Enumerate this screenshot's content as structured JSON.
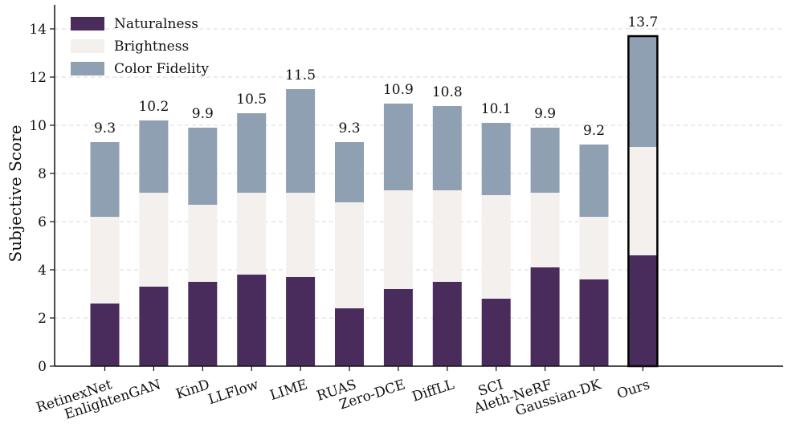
{
  "chart_data": {
    "type": "bar",
    "stacked": true,
    "title": "",
    "xlabel": "",
    "ylabel": "Subjective Score",
    "ylim": [
      0,
      15
    ],
    "yticks": [
      0,
      2,
      4,
      6,
      8,
      10,
      12,
      14
    ],
    "grid": "horizontal dashed",
    "legend_position": "top-left",
    "categories": [
      "RetinexNet",
      "EnlightenGAN",
      "KinD",
      "LLFlow",
      "LIME",
      "RUAS",
      "Zero-DCE",
      "DiffLL",
      "SCI",
      "Aleth-NeRF",
      "Gaussian-DK",
      "Ours"
    ],
    "series": [
      {
        "name": "Naturalness",
        "color": "#4a2c5c",
        "values": [
          2.6,
          3.3,
          3.5,
          3.8,
          3.7,
          2.4,
          3.2,
          3.5,
          2.8,
          4.1,
          3.6,
          4.6
        ]
      },
      {
        "name": "Brightness",
        "color": "#f3f0ee",
        "values": [
          3.6,
          3.9,
          3.2,
          3.4,
          3.5,
          4.4,
          4.1,
          3.8,
          4.3,
          3.1,
          2.6,
          4.5
        ]
      },
      {
        "name": "Color Fidelity",
        "color": "#8fa0b2",
        "values": [
          3.1,
          3.0,
          3.2,
          3.3,
          4.3,
          2.5,
          3.6,
          3.5,
          3.0,
          2.7,
          3.0,
          4.6
        ]
      }
    ],
    "totals": [
      "9.3",
      "10.2",
      "9.9",
      "10.5",
      "11.5",
      "9.3",
      "10.9",
      "10.8",
      "10.1",
      "9.9",
      "9.2",
      "13.7"
    ],
    "highlighted_category": "Ours"
  }
}
